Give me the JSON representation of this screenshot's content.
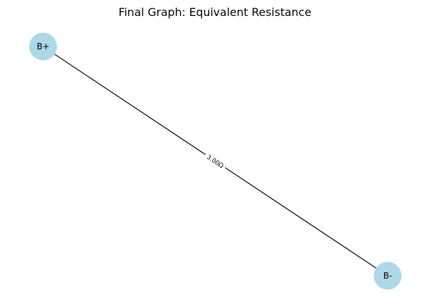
{
  "title": "Final Graph: Equivalent Resistance",
  "colors": {
    "node_fill": "#add8e6",
    "edge": "#000000",
    "label_bg": "#ffffff"
  },
  "nodes": {
    "positive": {
      "label": "B+"
    },
    "negative": {
      "label": "B-"
    }
  },
  "edges": [
    {
      "from": "B+",
      "to": "B-",
      "label": "3.00Ω"
    }
  ]
}
